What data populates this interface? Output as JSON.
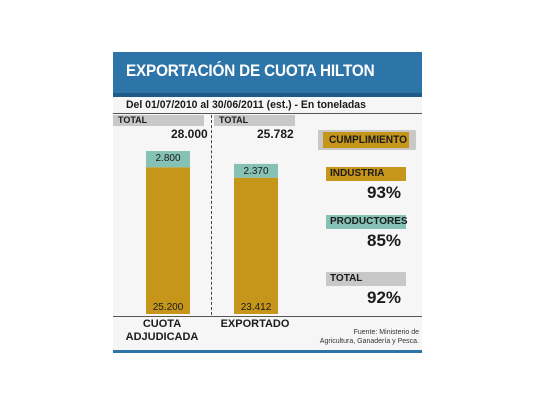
{
  "title": "EXPORTACIÓN DE CUOTA HILTON",
  "subtitle": "Del 01/07/2010 al 30/06/2011 (est.) - En toneladas",
  "colors": {
    "header": "#2d74a9",
    "industria": "#c6961a",
    "productores": "#86c1b5",
    "total": "#c8c8c8"
  },
  "chart_data": {
    "type": "bar",
    "stacked": true,
    "categories": [
      "CUOTA ADJUDICADA",
      "EXPORTADO"
    ],
    "series": [
      {
        "name": "INDUSTRIA",
        "values": [
          25200,
          23412
        ],
        "labels": [
          "25.200",
          "23.412"
        ]
      },
      {
        "name": "PRODUCTORES",
        "values": [
          2800,
          2370
        ],
        "labels": [
          "2.800",
          "2.370"
        ]
      }
    ],
    "totals": [
      {
        "label": "TOTAL",
        "value": "28.000"
      },
      {
        "label": "TOTAL",
        "value": "25.782"
      }
    ],
    "ylim": [
      0,
      28000
    ]
  },
  "cumplimiento": {
    "label": "CUMPLIMIENTO",
    "items": [
      {
        "label": "INDUSTRIA",
        "value": "93%"
      },
      {
        "label": "PRODUCTORES",
        "value": "85%"
      },
      {
        "label": "TOTAL",
        "value": "92%"
      }
    ]
  },
  "categories_display": [
    {
      "line1": "CUOTA",
      "line2": "ADJUDICADA"
    },
    {
      "line1": "EXPORTADO",
      "line2": ""
    }
  ],
  "source": {
    "line1": "Fuente: Ministerio de",
    "line2": "Agricultura, Ganadería y Pesca."
  }
}
